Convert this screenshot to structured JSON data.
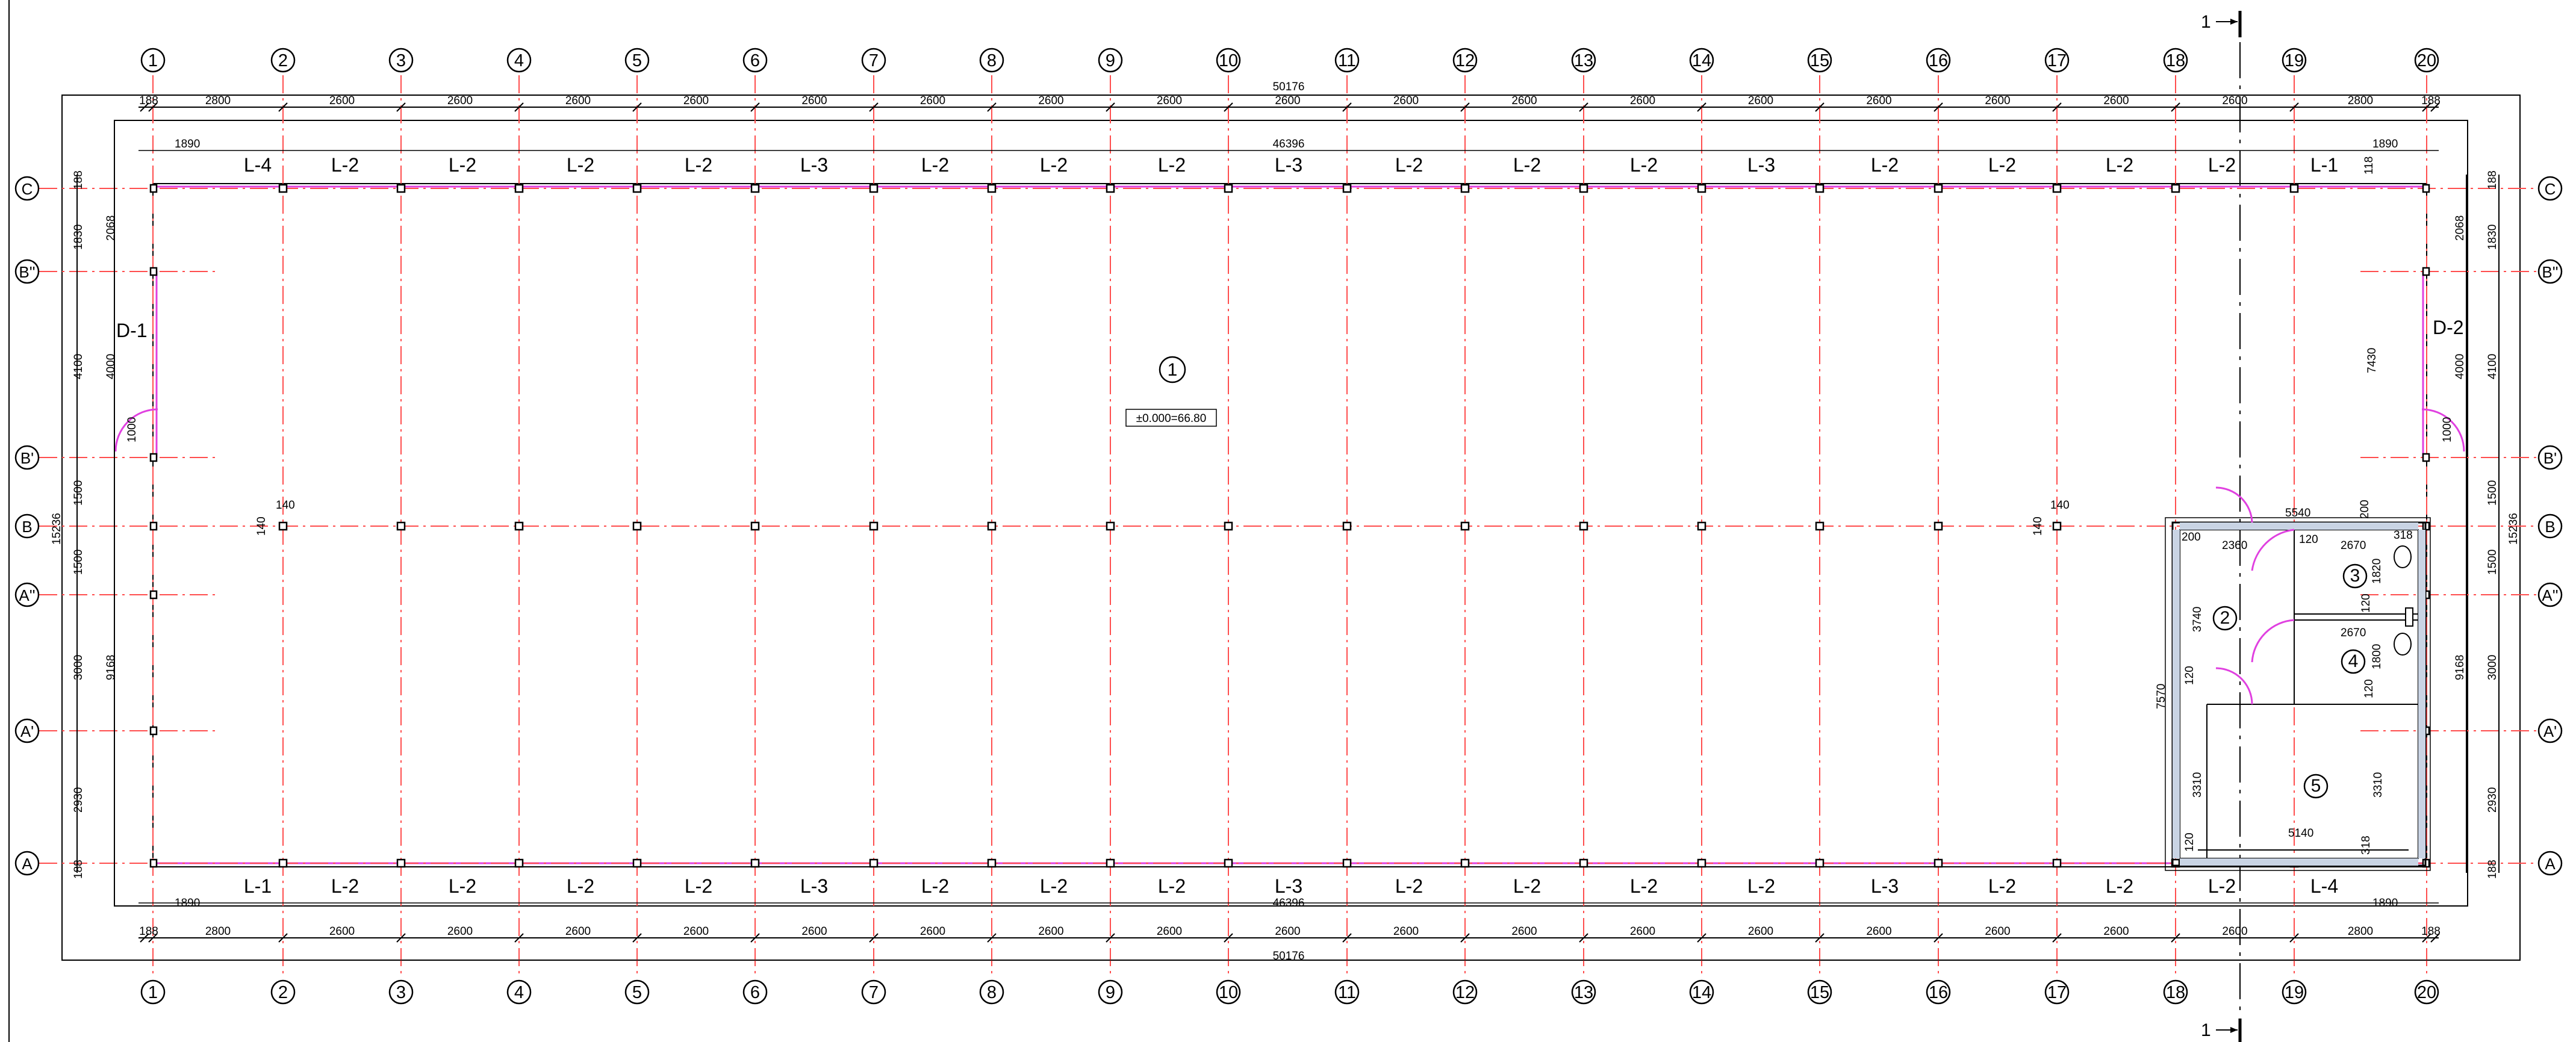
{
  "axes_numbers": [
    "1",
    "2",
    "3",
    "4",
    "5",
    "6",
    "7",
    "8",
    "9",
    "10",
    "11",
    "12",
    "13",
    "14",
    "15",
    "16",
    "17",
    "18",
    "19",
    "20"
  ],
  "axes_rows_left": [
    "C",
    "B''",
    "B'",
    "B",
    "A''",
    "A'",
    "A"
  ],
  "section_label": "1",
  "dims_top_overall": "50176",
  "dims_top_inner": "46396",
  "dims_bottom_overall": "50176",
  "dims_bottom_inner": "46396",
  "dims_row": [
    "188",
    "2800",
    "2600",
    "2600",
    "2600",
    "2600",
    "2600",
    "2600",
    "2600",
    "2600",
    "2600",
    "2600",
    "2600",
    "2600",
    "2600",
    "2600",
    "2600",
    "2600",
    "2600",
    "2800",
    "188"
  ],
  "edge_1890": "1890",
  "panels_top": [
    "L-4",
    "L-2",
    "L-2",
    "L-2",
    "L-2",
    "L-3",
    "L-2",
    "L-2",
    "L-2",
    "L-3",
    "L-2",
    "L-2",
    "L-2",
    "L-3",
    "L-2",
    "L-2",
    "L-2",
    "L-2",
    "L-1"
  ],
  "panels_bottom": [
    "L-1",
    "L-2",
    "L-2",
    "L-2",
    "L-2",
    "L-3",
    "L-2",
    "L-2",
    "L-2",
    "L-3",
    "L-2",
    "L-2",
    "L-2",
    "L-2",
    "L-3",
    "L-2",
    "L-2",
    "L-2",
    "L-4"
  ],
  "door_left": "D-1",
  "door_right": "D-2",
  "room_1": "1",
  "room_2": "2",
  "room_3": "3",
  "room_4": "4",
  "room_5": "5",
  "level_mark": "±0.000=66.80",
  "left_dims": {
    "d188a": "188",
    "d1830": "1830",
    "d2068": "2068",
    "d4100": "4100",
    "d4000": "4000",
    "d1000": "1000",
    "d1500a": "1500",
    "d15236": "15236",
    "d1500b": "1500",
    "d3000": "3000",
    "d9168": "9168",
    "d2930": "2930",
    "d188b": "188"
  },
  "misc_dims": {
    "d140": "140",
    "d118": "118",
    "d7430": "7430",
    "d5540": "5540",
    "d200a": "200",
    "d318a": "318",
    "d2360": "2360",
    "d120a": "120",
    "d2670a": "2670",
    "d1820": "1820",
    "d3740": "3740",
    "d120b": "120",
    "d2670b": "2670",
    "d1800": "1800",
    "d7570": "7570",
    "d120c": "120",
    "d3310a": "3310",
    "d3310b": "3310",
    "d5140": "5140",
    "d318b": "318",
    "d120d": "120",
    "d120e": "120",
    "d200b": "200"
  }
}
